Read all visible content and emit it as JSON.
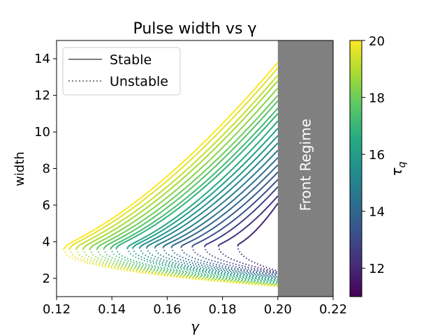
{
  "chart_data": {
    "type": "line",
    "title": "Pulse width vs γ",
    "xlabel": "γ",
    "ylabel": "width",
    "xlim": [
      0.12,
      0.22
    ],
    "ylim": [
      1.0,
      15.0
    ],
    "xticks": [
      "0.12",
      "0.14",
      "0.16",
      "0.18",
      "0.20",
      "0.22"
    ],
    "yticks": [
      "2",
      "4",
      "6",
      "8",
      "10",
      "12",
      "14"
    ],
    "grid": false,
    "legend": {
      "placement": "top-left",
      "entries": [
        {
          "label": "Stable",
          "style": "solid"
        },
        {
          "label": "Unstable",
          "style": "dotted"
        }
      ]
    },
    "shaded_region": {
      "x_start": 0.2,
      "x_end": 0.22,
      "label": "Front Regime",
      "color": "#808080"
    },
    "colorbar": {
      "label": "τ_q",
      "label_main": "τ",
      "label_sub": "q",
      "range": [
        11,
        20
      ],
      "ticks": [
        "12",
        "14",
        "16",
        "18",
        "20"
      ],
      "colormap": "viridis"
    },
    "curve_parameter": "tau_q",
    "series": [
      {
        "tau_q": 12.0,
        "gamma_turn": 0.1855,
        "width_turn": 3.8,
        "width_stable_at_0.20": 6.1,
        "width_unstable_at_0.20": 2.4
      },
      {
        "tau_q": 12.4,
        "gamma_turn": 0.1785,
        "width_turn": 3.78,
        "width_stable_at_0.20": 6.5,
        "width_unstable_at_0.20": 2.35
      },
      {
        "tau_q": 12.8,
        "gamma_turn": 0.1735,
        "width_turn": 3.76,
        "width_stable_at_0.20": 7.0,
        "width_unstable_at_0.20": 2.3
      },
      {
        "tau_q": 13.2,
        "gamma_turn": 0.169,
        "width_turn": 3.74,
        "width_stable_at_0.20": 7.4,
        "width_unstable_at_0.20": 2.25
      },
      {
        "tau_q": 13.6,
        "gamma_turn": 0.165,
        "width_turn": 3.72,
        "width_stable_at_0.20": 7.8,
        "width_unstable_at_0.20": 2.2
      },
      {
        "tau_q": 14.0,
        "gamma_turn": 0.1615,
        "width_turn": 3.71,
        "width_stable_at_0.20": 8.2,
        "width_unstable_at_0.20": 2.15
      },
      {
        "tau_q": 14.4,
        "gamma_turn": 0.1585,
        "width_turn": 3.7,
        "width_stable_at_0.20": 8.6,
        "width_unstable_at_0.20": 2.1
      },
      {
        "tau_q": 14.8,
        "gamma_turn": 0.1555,
        "width_turn": 3.69,
        "width_stable_at_0.20": 9.0,
        "width_unstable_at_0.20": 2.05
      },
      {
        "tau_q": 15.2,
        "gamma_turn": 0.1525,
        "width_turn": 3.68,
        "width_stable_at_0.20": 9.4,
        "width_unstable_at_0.20": 2.0
      },
      {
        "tau_q": 15.6,
        "gamma_turn": 0.15,
        "width_turn": 3.67,
        "width_stable_at_0.20": 9.8,
        "width_unstable_at_0.20": 1.95
      },
      {
        "tau_q": 16.0,
        "gamma_turn": 0.1475,
        "width_turn": 3.66,
        "width_stable_at_0.20": 10.2,
        "width_unstable_at_0.20": 1.9
      },
      {
        "tau_q": 16.4,
        "gamma_turn": 0.1455,
        "width_turn": 3.65,
        "width_stable_at_0.20": 10.6,
        "width_unstable_at_0.20": 1.85
      },
      {
        "tau_q": 16.8,
        "gamma_turn": 0.1415,
        "width_turn": 3.64,
        "width_stable_at_0.20": 11.0,
        "width_unstable_at_0.20": 1.8
      },
      {
        "tau_q": 17.2,
        "gamma_turn": 0.1395,
        "width_turn": 3.63,
        "width_stable_at_0.20": 11.3,
        "width_unstable_at_0.20": 1.75
      },
      {
        "tau_q": 17.6,
        "gamma_turn": 0.137,
        "width_turn": 3.62,
        "width_stable_at_0.20": 11.7,
        "width_unstable_at_0.20": 1.7
      },
      {
        "tau_q": 18.0,
        "gamma_turn": 0.1345,
        "width_turn": 3.61,
        "width_stable_at_0.20": 12.0,
        "width_unstable_at_0.20": 1.68
      },
      {
        "tau_q": 18.4,
        "gamma_turn": 0.132,
        "width_turn": 3.6,
        "width_stable_at_0.20": 12.4,
        "width_unstable_at_0.20": 1.65
      },
      {
        "tau_q": 18.8,
        "gamma_turn": 0.1295,
        "width_turn": 3.6,
        "width_stable_at_0.20": 12.8,
        "width_unstable_at_0.20": 1.62
      },
      {
        "tau_q": 19.2,
        "gamma_turn": 0.127,
        "width_turn": 3.6,
        "width_stable_at_0.20": 13.1,
        "width_unstable_at_0.20": 1.6
      },
      {
        "tau_q": 19.6,
        "gamma_turn": 0.1245,
        "width_turn": 3.6,
        "width_stable_at_0.20": 13.5,
        "width_unstable_at_0.20": 1.58
      },
      {
        "tau_q": 20.0,
        "gamma_turn": 0.1225,
        "width_turn": 3.6,
        "width_stable_at_0.20": 13.8,
        "width_unstable_at_0.20": 1.55
      }
    ]
  }
}
